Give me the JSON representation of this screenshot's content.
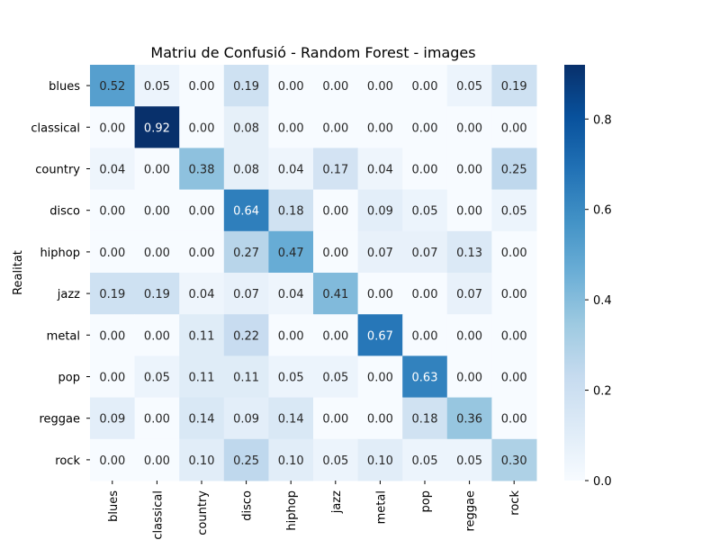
{
  "chart_data": {
    "type": "heatmap",
    "title": "Matriu de Confusió - Random Forest - images",
    "ylabel": "Realitat",
    "xlabel": "",
    "x_categories": [
      "blues",
      "classical",
      "country",
      "disco",
      "hiphop",
      "jazz",
      "metal",
      "pop",
      "reggae",
      "rock"
    ],
    "y_categories": [
      "blues",
      "classical",
      "country",
      "disco",
      "hiphop",
      "jazz",
      "metal",
      "pop",
      "reggae",
      "rock"
    ],
    "values": [
      [
        0.52,
        0.05,
        0.0,
        0.19,
        0.0,
        0.0,
        0.0,
        0.0,
        0.05,
        0.19
      ],
      [
        0.0,
        0.92,
        0.0,
        0.08,
        0.0,
        0.0,
        0.0,
        0.0,
        0.0,
        0.0
      ],
      [
        0.04,
        0.0,
        0.38,
        0.08,
        0.04,
        0.17,
        0.04,
        0.0,
        0.0,
        0.25
      ],
      [
        0.0,
        0.0,
        0.0,
        0.64,
        0.18,
        0.0,
        0.09,
        0.05,
        0.0,
        0.05
      ],
      [
        0.0,
        0.0,
        0.0,
        0.27,
        0.47,
        0.0,
        0.07,
        0.07,
        0.13,
        0.0
      ],
      [
        0.19,
        0.19,
        0.04,
        0.07,
        0.04,
        0.41,
        0.0,
        0.0,
        0.07,
        0.0
      ],
      [
        0.0,
        0.0,
        0.11,
        0.22,
        0.0,
        0.0,
        0.67,
        0.0,
        0.0,
        0.0
      ],
      [
        0.0,
        0.05,
        0.11,
        0.11,
        0.05,
        0.05,
        0.0,
        0.63,
        0.0,
        0.0
      ],
      [
        0.09,
        0.0,
        0.14,
        0.09,
        0.14,
        0.0,
        0.0,
        0.18,
        0.36,
        0.0
      ],
      [
        0.0,
        0.0,
        0.1,
        0.25,
        0.1,
        0.05,
        0.1,
        0.05,
        0.05,
        0.3
      ]
    ],
    "colorbar": {
      "range": [
        0,
        0.92
      ],
      "ticks": [
        "0.0",
        "0.2",
        "0.4",
        "0.6",
        "0.8"
      ],
      "colormap": "Blues"
    },
    "annotations": "cell values shown with 2 decimals",
    "grid": false
  }
}
